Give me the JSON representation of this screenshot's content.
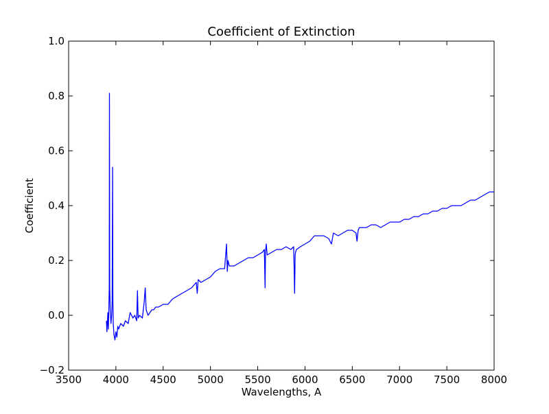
{
  "chart_data": {
    "type": "line",
    "title": "Coefficient of Extinction",
    "xlabel": "Wavelengths, A",
    "ylabel": "Coefficient",
    "xlim": [
      3500,
      8000
    ],
    "ylim": [
      -0.2,
      1.0
    ],
    "xticks": [
      3500,
      4000,
      4500,
      5000,
      5500,
      6000,
      6500,
      7000,
      7500,
      8000
    ],
    "xtick_labels": [
      "3500",
      "4000",
      "4500",
      "5000",
      "5500",
      "6000",
      "6500",
      "7000",
      "7500",
      "8000"
    ],
    "yticks": [
      -0.2,
      0.0,
      0.2,
      0.4,
      0.6,
      0.8,
      1.0
    ],
    "ytick_labels": [
      "−0.2",
      "0.0",
      "0.2",
      "0.4",
      "0.6",
      "0.8",
      "1.0"
    ],
    "grid": false,
    "legend": "none",
    "series": [
      {
        "color": "#0000ff",
        "x": [
          3900,
          3905,
          3915,
          3920,
          3925,
          3930,
          3932,
          3935,
          3940,
          3948,
          3955,
          3960,
          3965,
          3968,
          3972,
          3980,
          3990,
          4000,
          4010,
          4020,
          4030,
          4050,
          4080,
          4100,
          4130,
          4150,
          4180,
          4200,
          4220,
          4228,
          4235,
          4250,
          4280,
          4300,
          4310,
          4320,
          4340,
          4360,
          4380,
          4400,
          4420,
          4450,
          4500,
          4550,
          4600,
          4650,
          4700,
          4750,
          4800,
          4850,
          4860,
          4870,
          4900,
          4950,
          5000,
          5050,
          5100,
          5150,
          5170,
          5178,
          5185,
          5200,
          5250,
          5300,
          5350,
          5400,
          5450,
          5500,
          5550,
          5570,
          5578,
          5582,
          5590,
          5600,
          5650,
          5700,
          5750,
          5800,
          5850,
          5880,
          5886,
          5890,
          5896,
          5900,
          5910,
          5950,
          6000,
          6050,
          6100,
          6150,
          6200,
          6250,
          6280,
          6300,
          6350,
          6400,
          6450,
          6500,
          6540,
          6550,
          6562,
          6575,
          6600,
          6650,
          6700,
          6750,
          6800,
          6850,
          6900,
          6950,
          7000,
          7050,
          7100,
          7150,
          7200,
          7250,
          7300,
          7350,
          7400,
          7450,
          7500,
          7550,
          7600,
          7650,
          7700,
          7750,
          7800,
          7850,
          7900,
          7950,
          8000
        ],
        "y": [
          -0.02,
          -0.06,
          0.01,
          -0.05,
          0.02,
          0.1,
          0.81,
          0.1,
          0.02,
          -0.03,
          0.0,
          0.05,
          0.54,
          0.06,
          -0.03,
          -0.07,
          -0.09,
          -0.06,
          -0.08,
          -0.04,
          -0.05,
          -0.03,
          -0.04,
          -0.02,
          -0.03,
          0.01,
          -0.01,
          0.0,
          -0.02,
          0.09,
          -0.01,
          0.0,
          -0.01,
          0.05,
          0.1,
          0.02,
          0.0,
          0.01,
          0.02,
          0.02,
          0.03,
          0.03,
          0.04,
          0.04,
          0.06,
          0.07,
          0.08,
          0.09,
          0.1,
          0.12,
          0.08,
          0.13,
          0.12,
          0.13,
          0.14,
          0.16,
          0.17,
          0.17,
          0.26,
          0.16,
          0.2,
          0.18,
          0.18,
          0.19,
          0.2,
          0.21,
          0.21,
          0.22,
          0.23,
          0.24,
          0.1,
          0.23,
          0.26,
          0.22,
          0.23,
          0.24,
          0.24,
          0.25,
          0.24,
          0.25,
          0.16,
          0.08,
          0.22,
          0.23,
          0.24,
          0.25,
          0.26,
          0.27,
          0.29,
          0.29,
          0.29,
          0.28,
          0.26,
          0.3,
          0.29,
          0.3,
          0.31,
          0.31,
          0.3,
          0.27,
          0.31,
          0.32,
          0.32,
          0.32,
          0.33,
          0.33,
          0.32,
          0.33,
          0.34,
          0.34,
          0.34,
          0.35,
          0.35,
          0.36,
          0.36,
          0.37,
          0.37,
          0.38,
          0.38,
          0.39,
          0.39,
          0.4,
          0.4,
          0.4,
          0.41,
          0.42,
          0.42,
          0.43,
          0.44,
          0.45,
          0.45
        ]
      }
    ]
  }
}
